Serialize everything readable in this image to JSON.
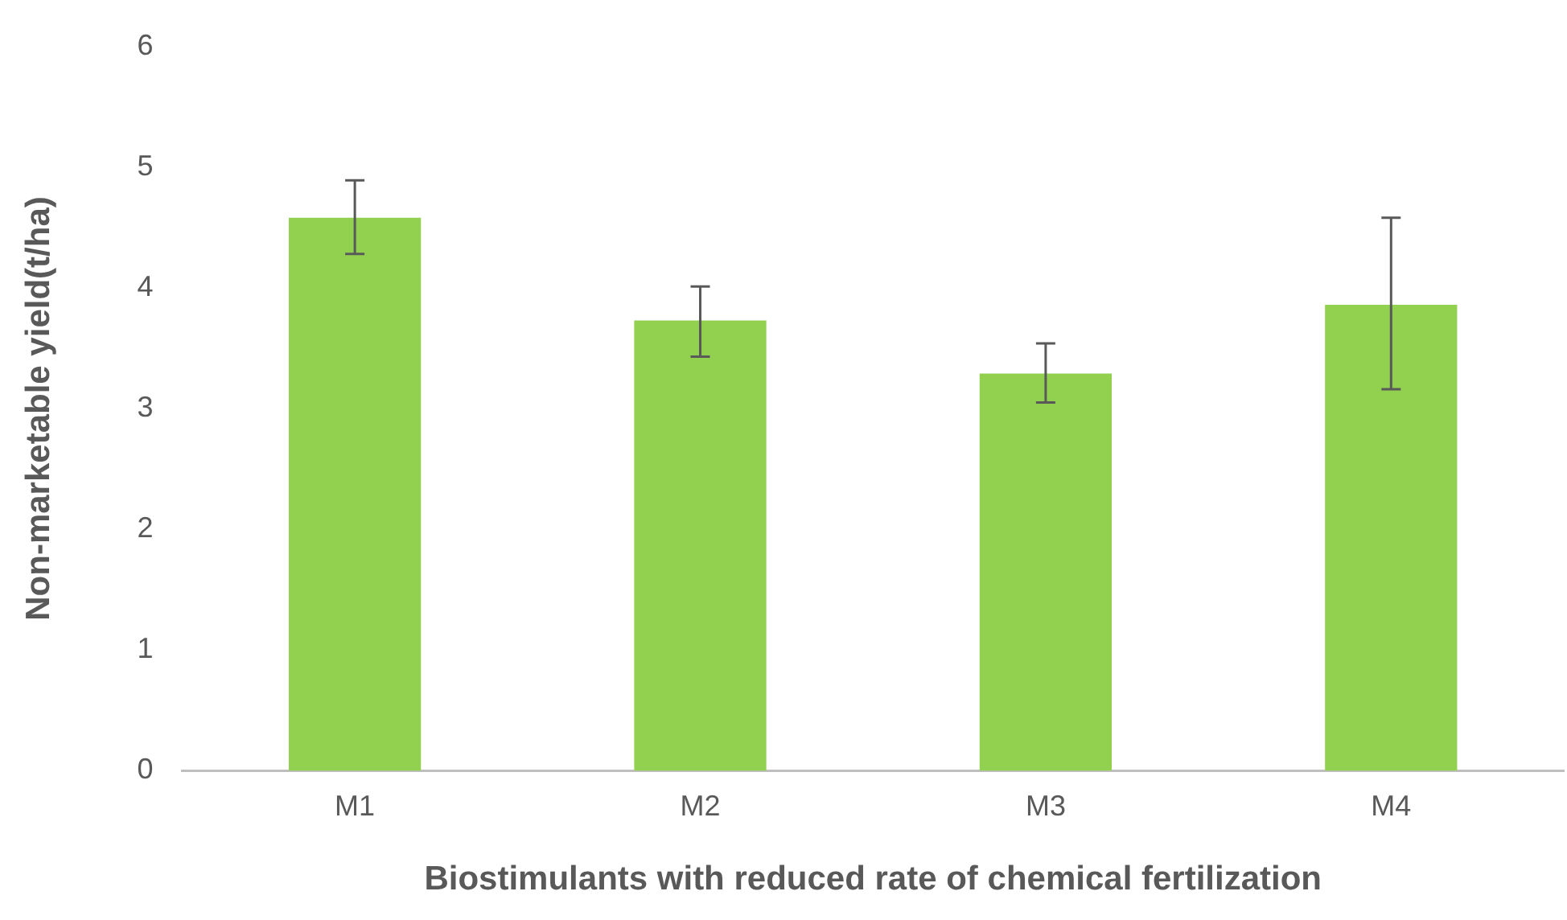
{
  "chart_data": {
    "type": "bar",
    "xlabel": "Biostimulants with reduced rate of chemical fertilization",
    "ylabel": "Non-marketable yield(t/ha)",
    "categories": [
      "M1",
      "M2",
      "M3",
      "M4"
    ],
    "values": [
      4.58,
      3.73,
      3.29,
      3.86
    ],
    "errors": [
      [
        4.28,
        4.89
      ],
      [
        3.43,
        4.01
      ],
      [
        3.05,
        3.54
      ],
      [
        3.16,
        4.58
      ]
    ],
    "color": "#92d050",
    "ylim": [
      0,
      6
    ],
    "yticks": [
      0,
      1,
      2,
      3,
      4,
      5,
      6
    ],
    "grid": false,
    "legend": false
  }
}
